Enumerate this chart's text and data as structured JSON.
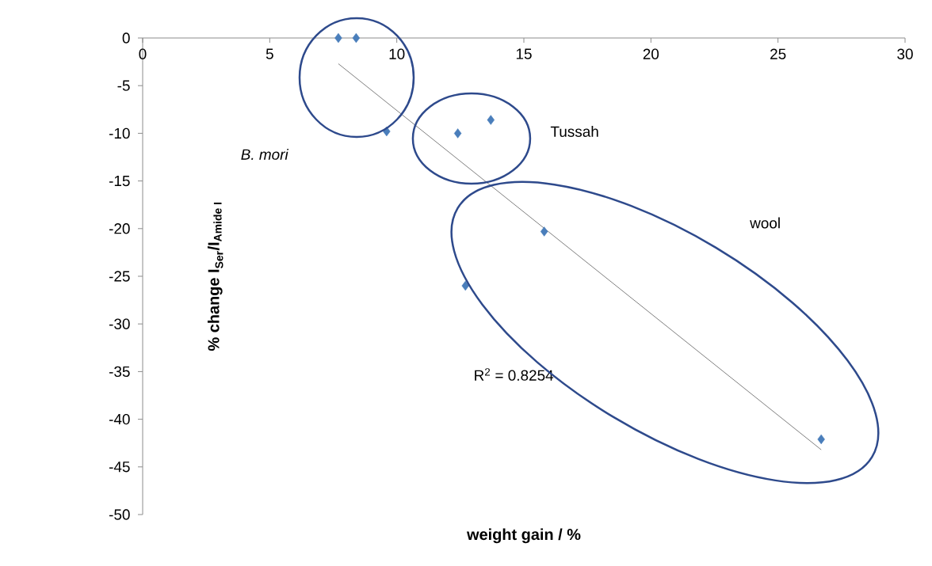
{
  "chart_data": {
    "type": "scatter",
    "xlabel": "weight gain / %",
    "ylabel": "\\text{\\% change I}_{\\text{Ser}}\\text{/I}_{\\text{Amide I}}",
    "series": [
      {
        "color": "#4a7ebb",
        "marker": "diamond",
        "x": [
          7.7,
          8.4,
          9.6,
          12.4,
          13.7,
          15.8,
          12.7,
          26.7
        ],
        "values": [
          0,
          0,
          -9.8,
          -10.0,
          -8.6,
          -20.3,
          -26.0,
          -42.1
        ]
      },
      {
        "type": "line",
        "color": "#7f7f7f",
        "marker": "none",
        "x": [
          7.7,
          26.7
        ],
        "values": [
          -2.7,
          -43.2
        ]
      }
    ],
    "xlim": [
      0,
      30
    ],
    "xticks": [
      0,
      5,
      10,
      15,
      20,
      25,
      30
    ],
    "ylim": [
      -50,
      0
    ],
    "yticks": [
      -50,
      -45,
      -40,
      -35,
      -30,
      -25,
      -20,
      -15,
      -10,
      -5,
      0
    ],
    "grid": false,
    "annotations": [
      "*B. mori*",
      "Tussah",
      "wool",
      "R$^{2}$ = 0.8254"
    ]
  }
}
